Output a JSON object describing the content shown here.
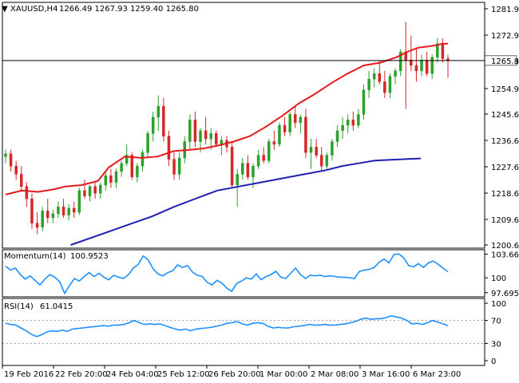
{
  "colors": {
    "background": "#ffffff",
    "axis": "#000000",
    "bull": "#2ca02c",
    "bear": "#d62728",
    "sma20": "#e41a1c",
    "sma200": "#1f1fb4",
    "momentum": "#1e90ff",
    "rsi": "#1e90ff",
    "level_line": "#000000",
    "price_label_bg": "#ffffff"
  },
  "main_header": {
    "triangle": "▼",
    "symbol": "XAUUSD,H4",
    "ohlc": "1266.49 1267.93 1259.40 1265.80"
  },
  "momentum_header": {
    "label": "Momentum(14)",
    "value": "100.9523"
  },
  "rsi_header": {
    "label": "RSI(14)",
    "value": "61.0415"
  },
  "chart_data": [
    {
      "type": "candlestick",
      "title": "XAUUSD,H4",
      "price_range": [
        1198.0,
        1286.0
      ],
      "y_ticks": [
        "1281.90",
        "1272.90",
        "1263.90",
        "1254.90",
        "1245.65",
        "1236.65",
        "1227.65",
        "1218.65",
        "1209.65",
        "1200.65"
      ],
      "current_price": "1265.80",
      "x_ticks": [
        {
          "index": 0,
          "label": "19 Feb 2016"
        },
        {
          "index": 15,
          "label": "22 Feb 20:00"
        },
        {
          "index": 31,
          "label": "24 Feb 04:00"
        },
        {
          "index": 47,
          "label": "25 Feb 12:00"
        },
        {
          "index": 63,
          "label": "26 Feb 20:00"
        },
        {
          "index": 79,
          "label": "1 Mar 00:00"
        },
        {
          "index": 95,
          "label": "2 Mar 08:00"
        },
        {
          "index": 111,
          "label": "3 Mar 16:00"
        },
        {
          "index": 127,
          "label": "6 Mar 23:00"
        }
      ],
      "ohlc": [
        [
          1230.5,
          1233.0,
          1228.0,
          1231.5
        ],
        [
          1231.5,
          1233.0,
          1225.0,
          1227.0
        ],
        [
          1227.0,
          1229.0,
          1222.0,
          1224.0
        ],
        [
          1224.0,
          1227.0,
          1218.0,
          1219.5
        ],
        [
          1219.5,
          1221.0,
          1212.0,
          1215.0
        ],
        [
          1215.0,
          1217.0,
          1204.0,
          1206.0
        ],
        [
          1206.0,
          1210.0,
          1202.0,
          1204.5
        ],
        [
          1204.5,
          1212.0,
          1203.0,
          1210.5
        ],
        [
          1210.5,
          1215.0,
          1206.0,
          1208.0
        ],
        [
          1208.0,
          1211.0,
          1206.0,
          1209.5
        ],
        [
          1209.5,
          1214.0,
          1208.0,
          1212.0
        ],
        [
          1212.0,
          1215.0,
          1208.0,
          1209.0
        ],
        [
          1209.0,
          1213.0,
          1207.0,
          1211.5
        ],
        [
          1211.5,
          1214.0,
          1208.0,
          1210.0
        ],
        [
          1210.0,
          1219.0,
          1209.0,
          1218.0
        ],
        [
          1218.0,
          1222.0,
          1215.0,
          1216.0
        ],
        [
          1216.0,
          1220.0,
          1214.0,
          1219.5
        ],
        [
          1219.5,
          1221.0,
          1215.0,
          1217.0
        ],
        [
          1217.0,
          1221.0,
          1215.0,
          1220.0
        ],
        [
          1220.0,
          1225.0,
          1218.0,
          1223.5
        ],
        [
          1223.5,
          1226.0,
          1219.0,
          1221.0
        ],
        [
          1221.0,
          1226.0,
          1219.0,
          1225.0
        ],
        [
          1225.0,
          1229.0,
          1223.0,
          1228.0
        ],
        [
          1228.0,
          1235.0,
          1227.0,
          1231.0
        ],
        [
          1231.0,
          1232.0,
          1222.0,
          1223.0
        ],
        [
          1223.0,
          1228.0,
          1221.0,
          1227.0
        ],
        [
          1227.0,
          1233.0,
          1225.0,
          1232.0
        ],
        [
          1232.0,
          1240.0,
          1230.0,
          1239.0
        ],
        [
          1239.0,
          1247.0,
          1236.0,
          1245.0
        ],
        [
          1245.0,
          1253.0,
          1240.0,
          1249.0
        ],
        [
          1249.0,
          1252.0,
          1236.0,
          1238.0
        ],
        [
          1238.0,
          1240.0,
          1227.0,
          1229.5
        ],
        [
          1229.5,
          1232.0,
          1222.0,
          1224.0
        ],
        [
          1224.0,
          1232.0,
          1222.0,
          1230.0
        ],
        [
          1230.0,
          1238.0,
          1228.0,
          1236.0
        ],
        [
          1236.0,
          1246.0,
          1233.0,
          1244.0
        ],
        [
          1244.0,
          1247.0,
          1234.0,
          1236.0
        ],
        [
          1236.0,
          1241.0,
          1232.0,
          1240.0
        ],
        [
          1240.0,
          1245.0,
          1235.0,
          1237.0
        ],
        [
          1237.0,
          1241.0,
          1233.0,
          1239.0
        ],
        [
          1239.0,
          1240.0,
          1234.0,
          1235.0
        ],
        [
          1235.0,
          1238.0,
          1231.0,
          1236.5
        ],
        [
          1236.5,
          1238.0,
          1232.0,
          1234.0
        ],
        [
          1234.0,
          1236.0,
          1219.0,
          1220.0
        ],
        [
          1220.0,
          1226.0,
          1212.0,
          1224.0
        ],
        [
          1224.0,
          1230.0,
          1222.0,
          1228.0
        ],
        [
          1228.0,
          1231.0,
          1222.0,
          1223.0
        ],
        [
          1223.0,
          1228.0,
          1219.0,
          1227.0
        ],
        [
          1227.0,
          1233.0,
          1226.0,
          1231.0
        ],
        [
          1231.0,
          1234.0,
          1228.0,
          1229.0
        ],
        [
          1229.0,
          1237.0,
          1228.0,
          1236.0
        ],
        [
          1236.0,
          1240.0,
          1233.0,
          1235.0
        ],
        [
          1235.0,
          1243.0,
          1234.0,
          1242.0
        ],
        [
          1242.0,
          1245.0,
          1238.0,
          1239.5
        ],
        [
          1239.5,
          1247.0,
          1238.0,
          1246.0
        ],
        [
          1246.0,
          1249.0,
          1241.0,
          1243.0
        ],
        [
          1243.0,
          1246.0,
          1239.0,
          1245.0
        ],
        [
          1245.0,
          1248.0,
          1230.0,
          1232.0
        ],
        [
          1232.0,
          1237.0,
          1226.0,
          1234.0
        ],
        [
          1234.0,
          1237.0,
          1230.0,
          1231.0
        ],
        [
          1231.0,
          1234.0,
          1225.0,
          1227.0
        ],
        [
          1227.0,
          1232.0,
          1226.0,
          1231.0
        ],
        [
          1231.0,
          1237.0,
          1229.0,
          1236.0
        ],
        [
          1236.0,
          1242.0,
          1234.0,
          1240.0
        ],
        [
          1240.0,
          1245.0,
          1237.0,
          1242.0
        ],
        [
          1242.0,
          1246.0,
          1239.0,
          1244.0
        ],
        [
          1244.0,
          1247.0,
          1240.0,
          1242.0
        ],
        [
          1242.0,
          1248.0,
          1241.0,
          1246.0
        ],
        [
          1246.0,
          1257.0,
          1244.0,
          1255.0
        ],
        [
          1255.0,
          1262.0,
          1252.0,
          1259.0
        ],
        [
          1259.0,
          1263.0,
          1256.0,
          1261.0
        ],
        [
          1261.0,
          1266.0,
          1257.0,
          1258.0
        ],
        [
          1258.0,
          1262.0,
          1252.0,
          1254.0
        ],
        [
          1254.0,
          1261.0,
          1252.0,
          1260.0
        ],
        [
          1260.0,
          1263.0,
          1257.0,
          1262.0
        ],
        [
          1262.0,
          1270.0,
          1260.0,
          1269.0
        ],
        [
          1269.0,
          1280.0,
          1248.0,
          1266.0
        ],
        [
          1266.0,
          1275.0,
          1262.0,
          1264.0
        ],
        [
          1264.0,
          1270.0,
          1258.0,
          1262.0
        ],
        [
          1262.0,
          1268.0,
          1260.0,
          1266.0
        ],
        [
          1266.0,
          1269.0,
          1260.0,
          1261.0
        ],
        [
          1261.0,
          1268.0,
          1259.0,
          1267.0
        ],
        [
          1267.0,
          1274.0,
          1265.0,
          1272.0
        ],
        [
          1272.0,
          1274.0,
          1265.0,
          1266.5
        ],
        [
          1266.49,
          1267.93,
          1259.4,
          1265.8
        ]
      ],
      "sma20": [
        [
          0,
          1216.5
        ],
        [
          6,
          1218.0
        ],
        [
          12,
          1217.5
        ],
        [
          18,
          1218.5
        ],
        [
          22,
          1219.5
        ],
        [
          28,
          1220.0
        ],
        [
          34,
          1221.5
        ],
        [
          38,
          1226.5
        ],
        [
          44,
          1230.5
        ],
        [
          50,
          1230.0
        ],
        [
          56,
          1230.5
        ],
        [
          62,
          1232.5
        ],
        [
          68,
          1233.0
        ],
        [
          73,
          1233.5
        ],
        [
          78,
          1234.5
        ],
        [
          84,
          1236.0
        ],
        [
          90,
          1238.0
        ],
        [
          96,
          1241.5
        ],
        [
          102,
          1245.5
        ],
        [
          108,
          1250.0
        ],
        [
          114,
          1253.5
        ],
        [
          120,
          1257.5
        ],
        [
          126,
          1261.0
        ],
        [
          132,
          1264.0
        ],
        [
          138,
          1265.0
        ],
        [
          144,
          1267.0
        ],
        [
          148,
          1269.0
        ],
        [
          152,
          1270.5
        ],
        [
          156,
          1271.0
        ],
        [
          159,
          1271.5
        ],
        [
          161,
          1272.0
        ],
        [
          163,
          1272.0
        ]
      ],
      "sma200": [
        [
          24,
          1198.0
        ],
        [
          34,
          1201.5
        ],
        [
          44,
          1205.0
        ],
        [
          54,
          1208.5
        ],
        [
          62,
          1212.0
        ],
        [
          70,
          1215.0
        ],
        [
          78,
          1218.0
        ],
        [
          86,
          1219.5
        ],
        [
          94,
          1221.0
        ],
        [
          102,
          1222.5
        ],
        [
          110,
          1224.0
        ],
        [
          118,
          1225.5
        ],
        [
          124,
          1227.0
        ],
        [
          130,
          1228.0
        ],
        [
          136,
          1229.0
        ],
        [
          142,
          1229.3
        ],
        [
          148,
          1229.6
        ],
        [
          153,
          1229.8
        ]
      ]
    },
    {
      "type": "line",
      "title": "Momentum(14)",
      "y_ticks": [
        "103.6612",
        "100",
        "97.6955"
      ],
      "range": [
        97.3,
        104.1
      ],
      "reference_level": 100,
      "values": [
        101.8,
        101.2,
        101.5,
        100.5,
        99.8,
        100.3,
        99.6,
        98.9,
        99.8,
        100.5,
        100.1,
        99.4,
        97.6,
        98.8,
        99.9,
        99.5,
        100.2,
        100.8,
        100.2,
        100.7,
        100.1,
        99.7,
        100.4,
        100.1,
        99.9,
        100.5,
        101.5,
        102.1,
        103.4,
        102.8,
        101.4,
        100.6,
        100.3,
        100.8,
        101.1,
        102.0,
        101.6,
        101.9,
        100.9,
        100.4,
        100.2,
        99.3,
        98.9,
        99.6,
        99.2,
        98.4,
        97.9,
        99.1,
        99.5,
        100.0,
        99.8,
        100.6,
        99.7,
        100.2,
        100.5,
        101.0,
        100.1,
        99.9,
        100.7,
        101.5,
        100.5,
        99.9,
        100.4,
        100.3,
        100.4,
        100.2,
        100.3,
        100.2,
        100.1,
        100.1,
        100.0,
        99.9,
        101.0,
        101.2,
        101.3,
        101.6,
        102.4,
        102.9,
        102.3,
        103.6,
        103.7,
        103.1,
        101.9,
        101.7,
        102.2,
        101.6,
        102.3,
        102.6,
        102.1,
        101.5,
        100.95
      ]
    },
    {
      "type": "line",
      "title": "RSI(14)",
      "y_ticks": [
        "100",
        "70",
        "30",
        "0"
      ],
      "range": [
        0,
        100
      ],
      "levels": [
        70,
        30
      ],
      "values": [
        65,
        63,
        62,
        57,
        52,
        46,
        42,
        45,
        50,
        52,
        51,
        53,
        51,
        55,
        56,
        57,
        58,
        59,
        60,
        61,
        60,
        62,
        62,
        63,
        66,
        70,
        66,
        63,
        64,
        63,
        64,
        61,
        58,
        55,
        53,
        55,
        52,
        55,
        56,
        57,
        58,
        60,
        62,
        65,
        66,
        68,
        64,
        62,
        65,
        66,
        65,
        60,
        57,
        58,
        57,
        57,
        59,
        60,
        61,
        63,
        62,
        62,
        63,
        62,
        62,
        63,
        64,
        66,
        68,
        72,
        74,
        72,
        73,
        73,
        75,
        78,
        76,
        74,
        70,
        64,
        65,
        63,
        66,
        70,
        67,
        64,
        61
      ]
    }
  ]
}
